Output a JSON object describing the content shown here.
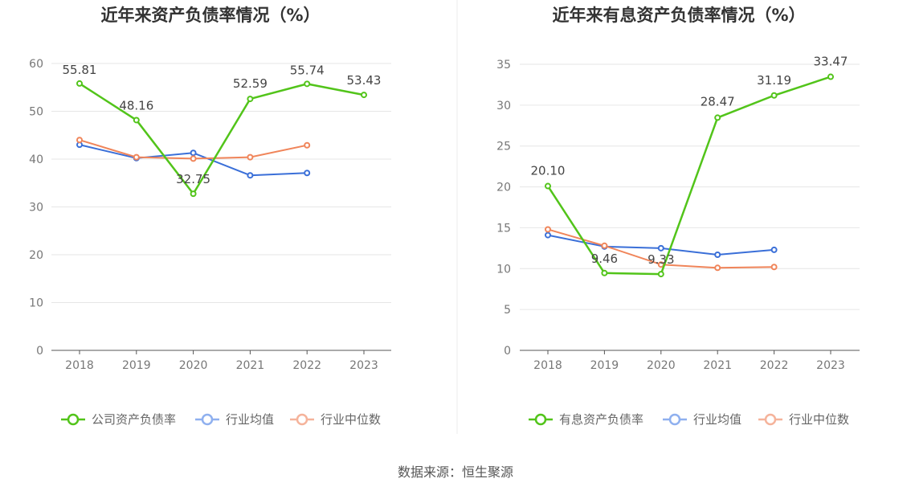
{
  "colors": {
    "company": "#52c41a",
    "average": "#3a6fd8",
    "median": "#f0855a",
    "average_legend": "#8fb0ef",
    "median_legend": "#f5b39b"
  },
  "source": "数据来源：恒生聚源",
  "chart_data": [
    {
      "type": "line",
      "title": "近年来资产负债率情况（%）",
      "categories": [
        "2018",
        "2019",
        "2020",
        "2021",
        "2022",
        "2023"
      ],
      "ylim": [
        0,
        60
      ],
      "yticks": [
        "0",
        "10",
        "20",
        "30",
        "40",
        "50",
        "60"
      ],
      "grid": true,
      "legend_position": "bottom",
      "series": [
        {
          "name": "公司资产负债率",
          "key": "company",
          "values": [
            55.81,
            48.16,
            32.75,
            52.59,
            55.74,
            53.43
          ],
          "labels": [
            "55.81",
            "48.16",
            "32.75",
            "52.59",
            "55.74",
            "53.43"
          ]
        },
        {
          "name": "行业均值",
          "key": "average",
          "values": [
            43.0,
            40.2,
            41.3,
            36.6,
            37.1,
            null
          ]
        },
        {
          "name": "行业中位数",
          "key": "median",
          "values": [
            44.0,
            40.4,
            40.1,
            40.4,
            42.9,
            null
          ]
        }
      ]
    },
    {
      "type": "line",
      "title": "近年来有息资产负债率情况（%）",
      "categories": [
        "2018",
        "2019",
        "2020",
        "2021",
        "2022",
        "2023"
      ],
      "ylim": [
        0,
        35
      ],
      "yticks": [
        "0",
        "5",
        "10",
        "15",
        "20",
        "25",
        "30",
        "35"
      ],
      "grid": true,
      "legend_position": "bottom",
      "series": [
        {
          "name": "有息资产负债率",
          "key": "company",
          "values": [
            20.1,
            9.46,
            9.33,
            28.47,
            31.19,
            33.47
          ],
          "labels": [
            "20.10",
            "9.46",
            "9.33",
            "28.47",
            "31.19",
            "33.47"
          ]
        },
        {
          "name": "行业均值",
          "key": "average",
          "values": [
            14.1,
            12.7,
            12.5,
            11.7,
            12.3,
            null
          ]
        },
        {
          "name": "行业中位数",
          "key": "median",
          "values": [
            14.8,
            12.8,
            10.5,
            10.1,
            10.2,
            null
          ]
        }
      ]
    }
  ]
}
